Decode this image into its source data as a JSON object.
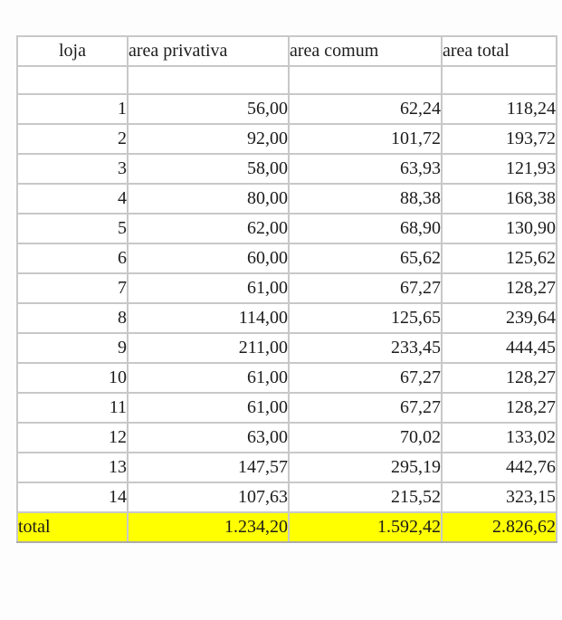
{
  "table": {
    "columns": [
      {
        "key": "loja",
        "label": "loja"
      },
      {
        "key": "area_privativa",
        "label": "area privativa"
      },
      {
        "key": "area_comum",
        "label": "area comum"
      },
      {
        "key": "area_total",
        "label": "area total"
      }
    ],
    "rows": [
      [
        "1",
        "56,00",
        "62,24",
        "118,24"
      ],
      [
        "2",
        "92,00",
        "101,72",
        "193,72"
      ],
      [
        "3",
        "58,00",
        "63,93",
        "121,93"
      ],
      [
        "4",
        "80,00",
        "88,38",
        "168,38"
      ],
      [
        "5",
        "62,00",
        "68,90",
        "130,90"
      ],
      [
        "6",
        "60,00",
        "65,62",
        "125,62"
      ],
      [
        "7",
        "61,00",
        "67,27",
        "128,27"
      ],
      [
        "8",
        "114,00",
        "125,65",
        "239,64"
      ],
      [
        "9",
        "211,00",
        "233,45",
        "444,45"
      ],
      [
        "10",
        "61,00",
        "67,27",
        "128,27"
      ],
      [
        "11",
        "61,00",
        "67,27",
        "128,27"
      ],
      [
        "12",
        "63,00",
        "70,02",
        "133,02"
      ],
      [
        "13",
        "147,57",
        "295,19",
        "442,76"
      ],
      [
        "14",
        "107,63",
        "215,52",
        "323,15"
      ]
    ],
    "total_row": {
      "label": "total",
      "area_privativa": "1.234,20",
      "area_comum": "1.592,42",
      "area_total": "2.826,62"
    },
    "colors": {
      "highlight": "#ffff00",
      "border": "#c8c8c8",
      "text": "#1c1c1c",
      "background": "#ffffff"
    }
  }
}
